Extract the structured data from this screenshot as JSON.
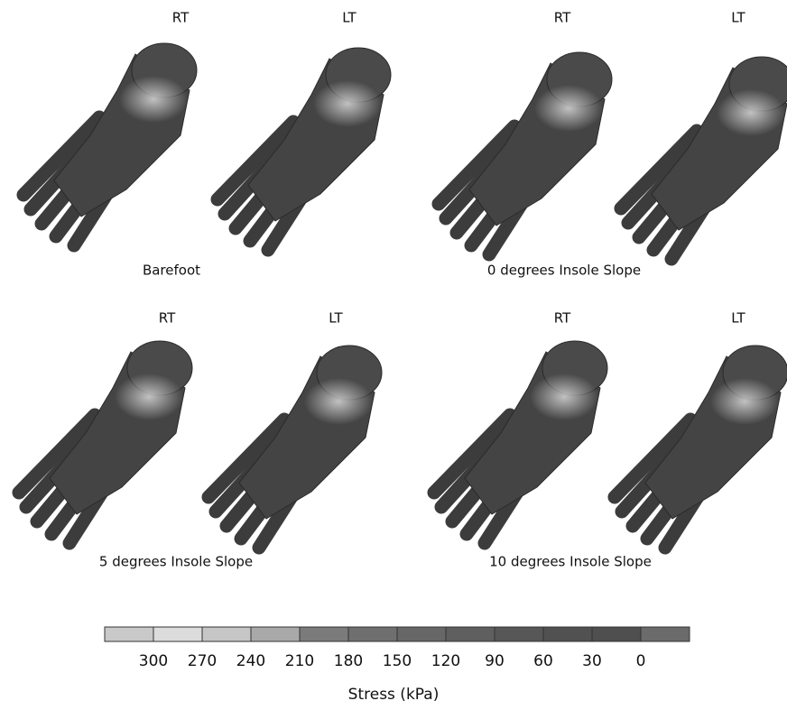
{
  "panels": [
    {
      "left": "RT",
      "right": "LT",
      "caption": "Barefoot"
    },
    {
      "left": "RT",
      "right": "LT",
      "caption": "0 degrees Insole Slope"
    },
    {
      "left": "RT",
      "right": "LT",
      "caption": "5 degrees Insole Slope"
    },
    {
      "left": "RT",
      "right": "LT",
      "caption": "10 degrees Insole Slope"
    }
  ],
  "colorbar": {
    "colors": [
      "#c9c9c9",
      "#dcdcdc",
      "#c6c6c6",
      "#a9a9a9",
      "#7b7b7b",
      "#6f6f6f",
      "#676767",
      "#5f5f5f",
      "#575757",
      "#515151",
      "#4f4f4f",
      "#6b6b6b"
    ],
    "ticks": [
      300,
      270,
      240,
      210,
      180,
      150,
      120,
      90,
      60,
      30,
      0
    ],
    "label": "Stress (kPa)"
  }
}
